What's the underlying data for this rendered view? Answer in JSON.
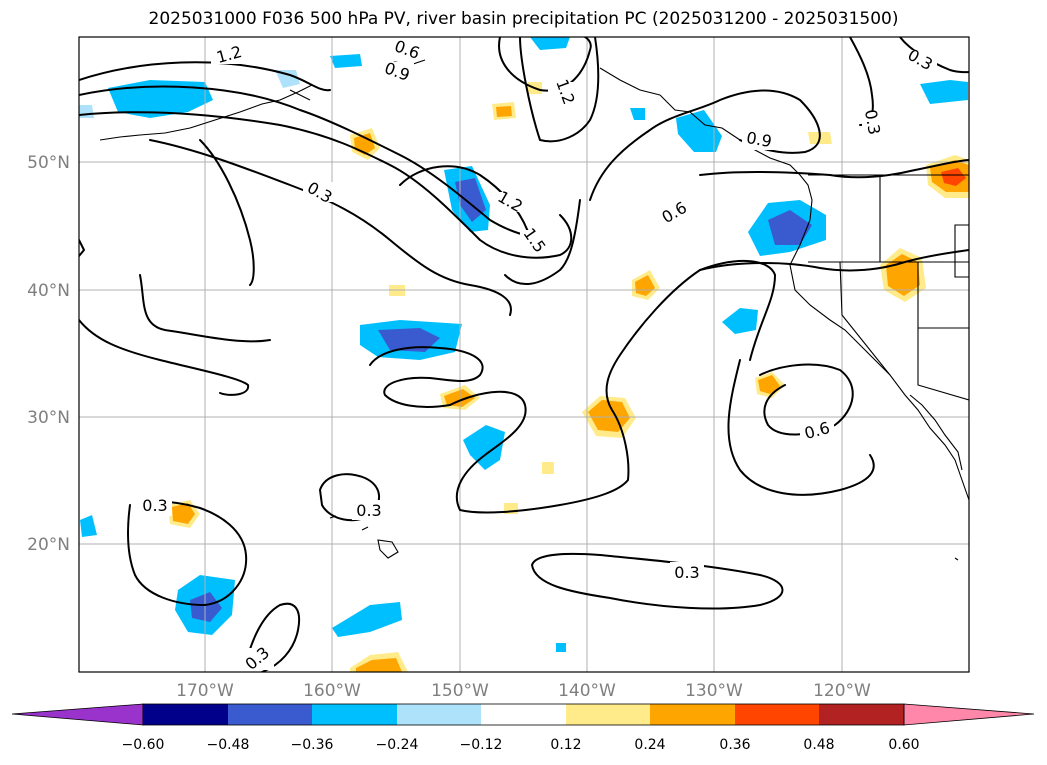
{
  "title": "2025031000 F036 500 hPa PV, river basin precipitation PC (2025031200 - 2025031500)",
  "lat_labels": [
    "50°N",
    "40°N",
    "30°N",
    "20°N"
  ],
  "lon_labels": [
    "170°W",
    "160°W",
    "150°W",
    "140°W",
    "130°W",
    "120°W"
  ],
  "contour_labels": [
    "1.2",
    "0.6",
    "0.9",
    "1.2",
    "0.3",
    "0.3",
    "1.2",
    "1.5",
    "0.6",
    "0.9",
    "0.3",
    "0.3",
    "0.6",
    "0.3",
    "0.3"
  ],
  "colorbar": {
    "ticks": [
      "−0.60",
      "−0.48",
      "−0.36",
      "−0.24",
      "−0.12",
      "0.12",
      "0.24",
      "0.36",
      "0.48",
      "0.60"
    ],
    "colors": [
      "#9933cc",
      "#00008b",
      "#3a5bd0",
      "#00bfff",
      "#aee2fa",
      "#ffffff",
      "#ffeb8a",
      "#ffa500",
      "#ff4500",
      "#b22222",
      "#ff88aa"
    ]
  },
  "colors": {
    "neg_light": "#aee2fa",
    "neg_mid": "#00bfff",
    "neg_dark": "#3a5bd0",
    "pos_light": "#ffeb8a",
    "pos_mid": "#ffa500",
    "pos_dark": "#ff4500"
  }
}
